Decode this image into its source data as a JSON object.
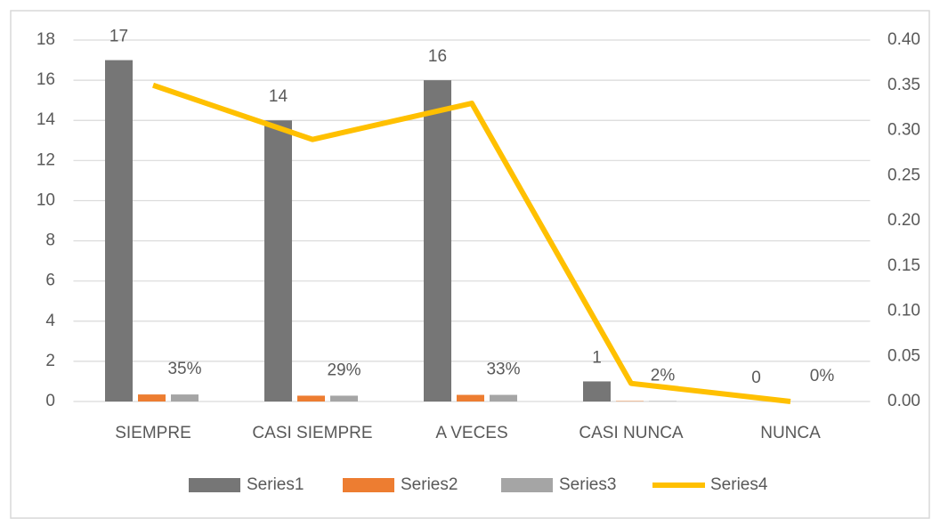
{
  "chart_data": {
    "type": "bar",
    "categories": [
      "SIEMPRE",
      "CASI SIEMPRE",
      "A VECES",
      "CASI NUNCA",
      "NUNCA"
    ],
    "series": [
      {
        "name": "Series1",
        "color": "#767676",
        "values": [
          17,
          14,
          16,
          1,
          0
        ]
      },
      {
        "name": "Series2",
        "color": "#ed7d31",
        "values": [
          0.35,
          0.29,
          0.33,
          0.02,
          0
        ]
      },
      {
        "name": "Series3",
        "color": "#a5a5a5",
        "values": [
          0.35,
          0.29,
          0.33,
          0.02,
          0
        ],
        "value_labels": [
          "35%",
          "29%",
          "33%",
          "2%",
          "0%"
        ]
      },
      {
        "name": "Series4",
        "color": "#ffc000",
        "type": "line",
        "axis": "y2",
        "values": [
          0.35,
          0.29,
          0.33,
          0.02,
          0
        ]
      }
    ],
    "ylim": [
      0,
      18
    ],
    "yticks": [
      0,
      2,
      4,
      6,
      8,
      10,
      12,
      14,
      16,
      18
    ],
    "y2lim": [
      0,
      0.4
    ],
    "y2ticks": [
      {
        "value": 0,
        "label": "0.00"
      },
      {
        "value": 0.05,
        "label": "0.05"
      },
      {
        "value": 0.1,
        "label": "0.10"
      },
      {
        "value": 0.15,
        "label": "0.15"
      },
      {
        "value": 0.2,
        "label": "0.20"
      },
      {
        "value": 0.25,
        "label": "0.25"
      },
      {
        "value": 0.3,
        "label": "0.30"
      },
      {
        "value": 0.35,
        "label": "0.35"
      },
      {
        "value": 0.4,
        "label": "0.40"
      }
    ],
    "grid": true,
    "legend": "bottom"
  }
}
